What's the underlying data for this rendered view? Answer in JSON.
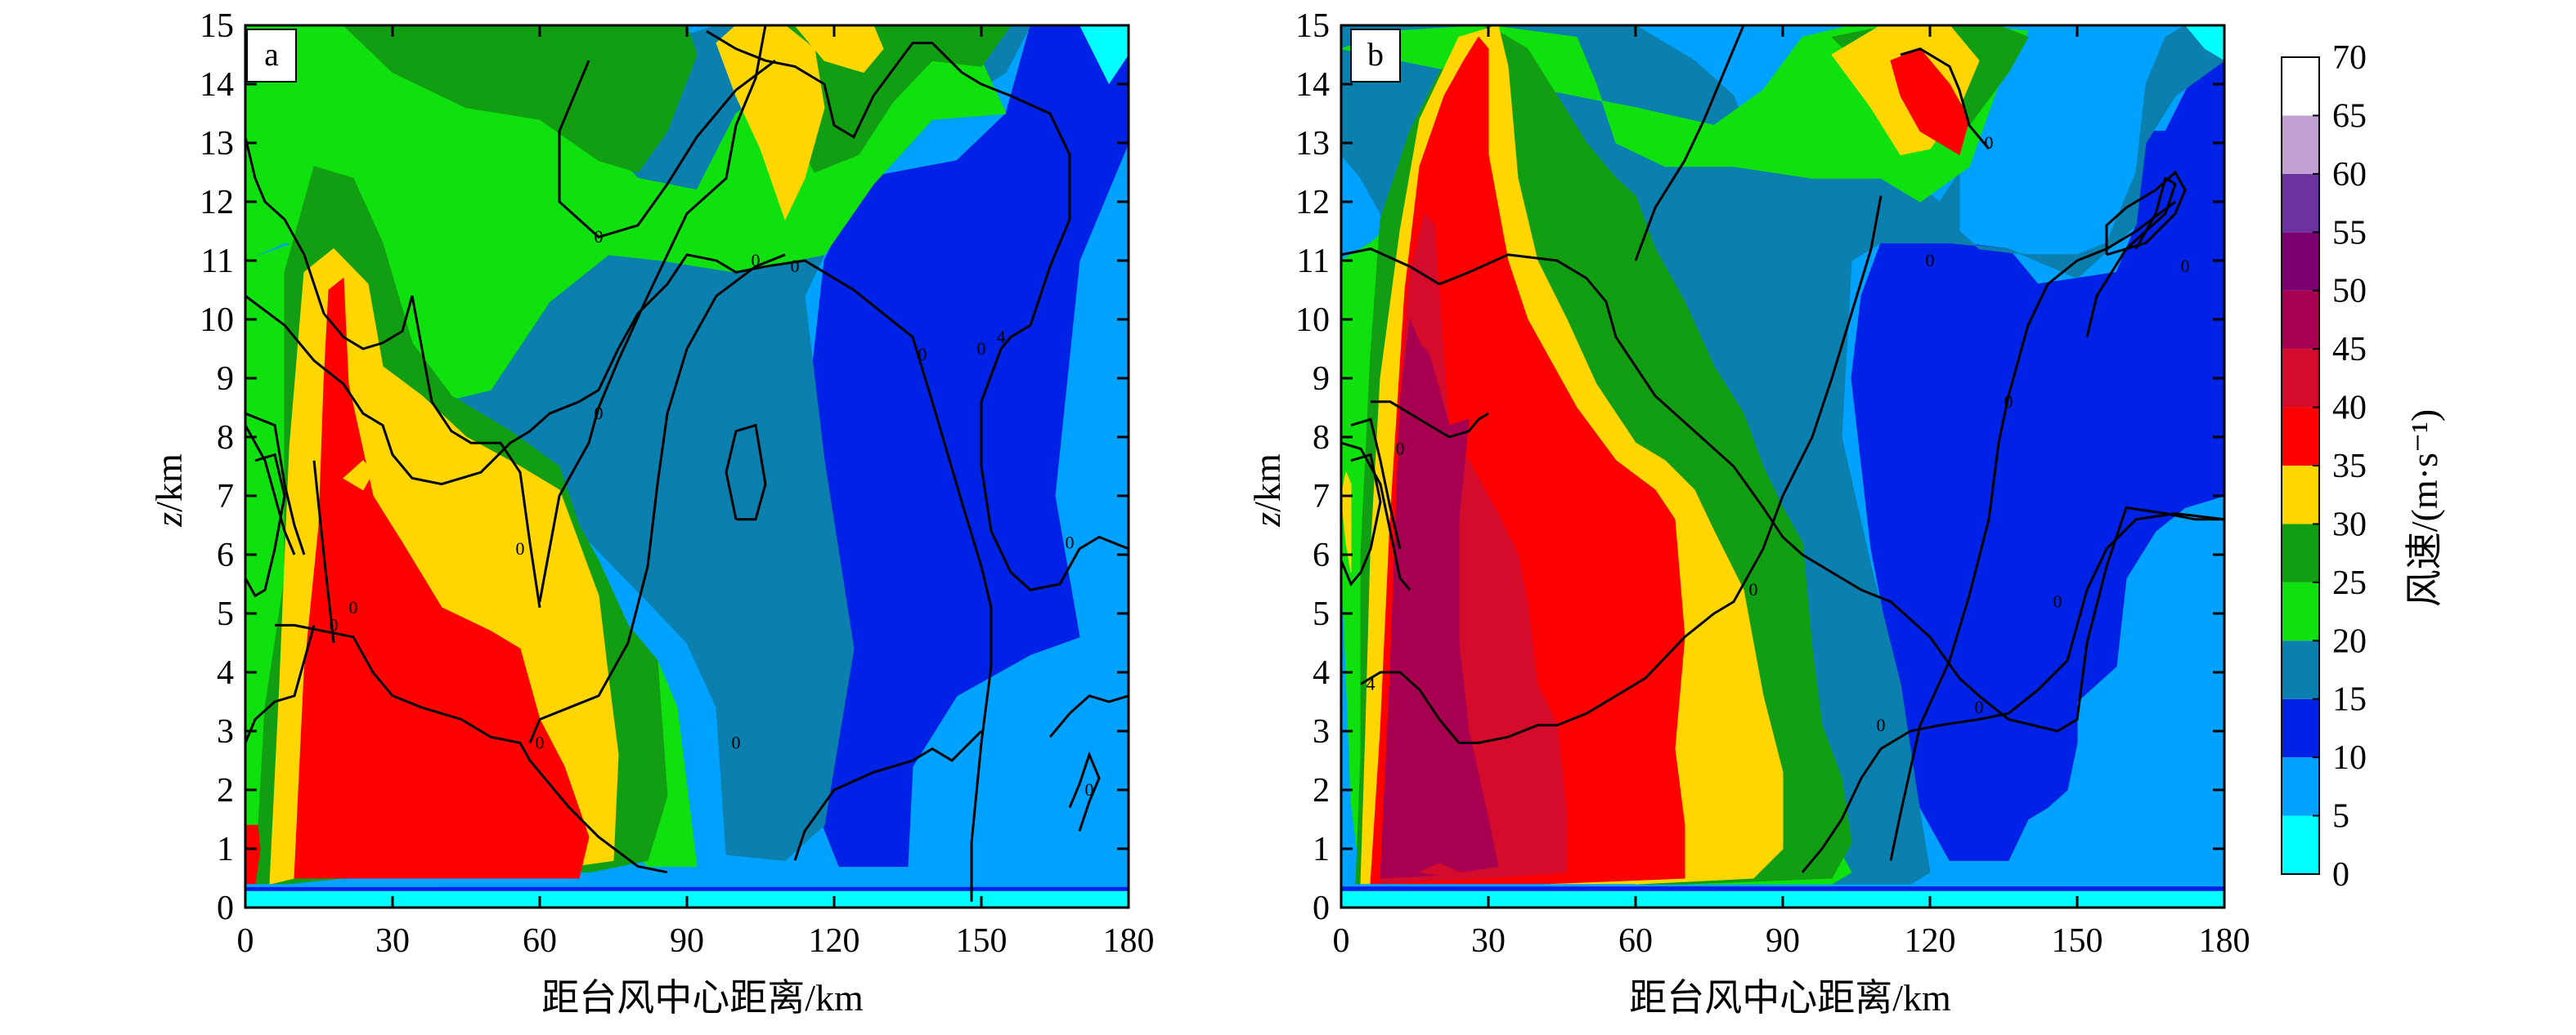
{
  "chart_data": [
    {
      "type": "heatmap",
      "panel_label": "a",
      "xlabel": "距台风中心距离/km",
      "ylabel_var": "z",
      "ylabel_unit": "/km",
      "xlim": [
        0,
        180
      ],
      "ylim": [
        0,
        15
      ],
      "xticks": [
        0,
        30,
        60,
        90,
        120,
        150,
        180
      ],
      "yticks": [
        0,
        1,
        2,
        3,
        4,
        5,
        6,
        7,
        8,
        9,
        10,
        11,
        12,
        13,
        14,
        15
      ],
      "contour_labels": [
        "0",
        "0",
        "0",
        "0",
        "0",
        "0",
        "0",
        "0",
        "0",
        "0",
        "4",
        "0",
        "0",
        "0"
      ]
    },
    {
      "type": "heatmap",
      "panel_label": "b",
      "xlabel": "距台风中心距离/km",
      "ylabel_var": "z",
      "ylabel_unit": "/km",
      "xlim": [
        0,
        180
      ],
      "ylim": [
        0,
        15
      ],
      "xticks": [
        0,
        30,
        60,
        90,
        120,
        150,
        180
      ],
      "yticks": [
        0,
        1,
        2,
        3,
        4,
        5,
        6,
        7,
        8,
        9,
        10,
        11,
        12,
        13,
        14,
        15
      ],
      "contour_labels": [
        "0",
        "0",
        "0",
        "0",
        "0",
        "0",
        "0",
        "0",
        "4",
        "0"
      ]
    }
  ],
  "colorbar": {
    "label": "风速/(m·s⁻¹)",
    "ticks": [
      0,
      5,
      10,
      15,
      20,
      25,
      30,
      35,
      40,
      45,
      50,
      55,
      60,
      65,
      70
    ],
    "colors": [
      "#00ffff",
      "#00a2ff",
      "#0022e6",
      "#0b7fae",
      "#0fe10f",
      "#129e12",
      "#ffd600",
      "#ff0000",
      "#d50b2b",
      "#a80050",
      "#7c0070",
      "#6c32a0",
      "#c0a0d0",
      "#ffffff"
    ]
  }
}
